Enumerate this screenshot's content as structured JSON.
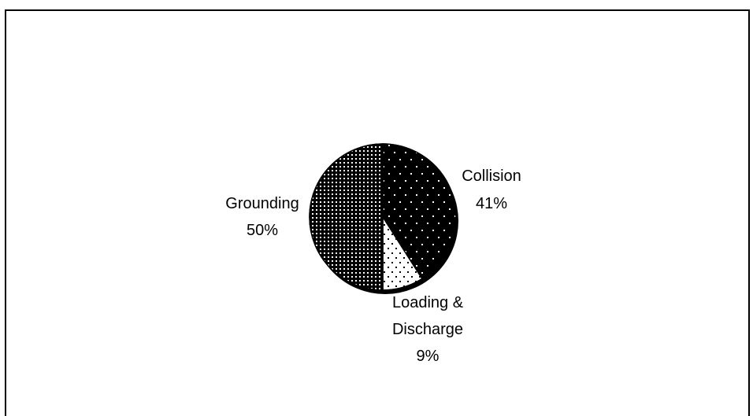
{
  "chart_data": {
    "type": "pie",
    "title": "",
    "slices": [
      {
        "label": "Collision",
        "value": 41,
        "percent_label": "41%",
        "fill": "#000000",
        "dot": "#ffffff",
        "pattern": "sparse-white-dots"
      },
      {
        "label": "Loading & Discharge",
        "value": 9,
        "percent_label": "9%",
        "fill": "#ffffff",
        "dot": "#000000",
        "pattern": "sparse-black-dots"
      },
      {
        "label": "Grounding",
        "value": 50,
        "percent_label": "50%",
        "fill": "#000000",
        "dot": "#ffffff",
        "pattern": "dense-white-dots"
      }
    ],
    "label_lines": {
      "collision": [
        "Collision",
        "41%"
      ],
      "loading": [
        "Loading &",
        "Discharge",
        "9%"
      ],
      "grounding": [
        "Grounding",
        "50%"
      ]
    },
    "start_angle_deg": 0,
    "direction": "clockwise",
    "has_shadow": true
  }
}
